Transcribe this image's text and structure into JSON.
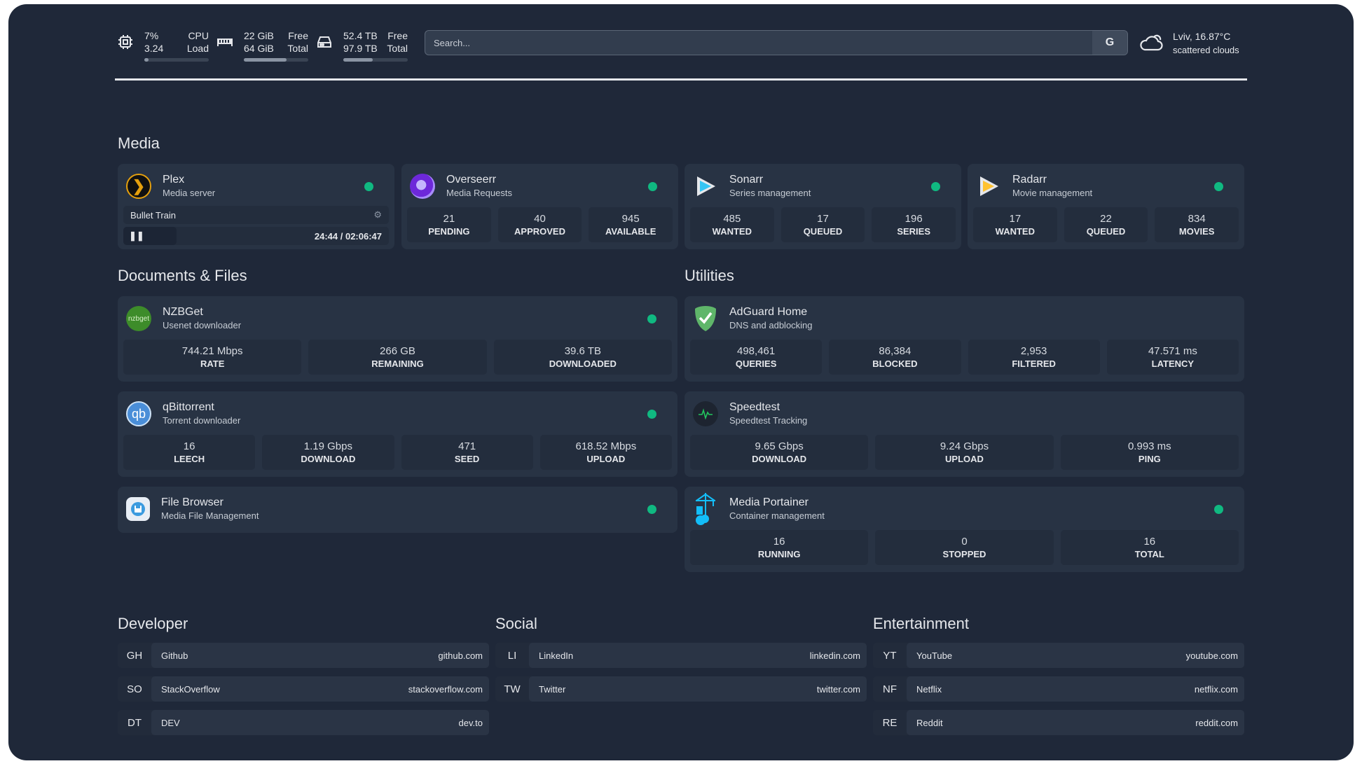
{
  "resources": {
    "cpu": {
      "icon": "cpu-icon",
      "value1": "7%",
      "label1": "CPU",
      "value2": "3.24",
      "label2": "Load",
      "percent": 7
    },
    "memory": {
      "icon": "memory-icon",
      "value1": "22 GiB",
      "label1": "Free",
      "value2": "64 GiB",
      "label2": "Total",
      "percent": 66
    },
    "disk": {
      "icon": "disk-icon",
      "value1": "52.4 TB",
      "label1": "Free",
      "value2": "97.9 TB",
      "label2": "Total",
      "percent": 46
    }
  },
  "search": {
    "placeholder": "Search...",
    "provider": "G"
  },
  "weather": {
    "icon": "cloud-icon",
    "location": "Lviv, 16.87°C",
    "condition": "scattered clouds"
  },
  "sections": {
    "media": "Media",
    "documents": "Documents & Files",
    "utilities": "Utilities",
    "developer": "Developer",
    "social": "Social",
    "entertainment": "Entertainment"
  },
  "media": [
    {
      "name": "Plex",
      "desc": "Media server",
      "status": "online",
      "now_playing": {
        "title": "Bullet Train",
        "time": "24:44 / 02:06:47",
        "state": "paused"
      }
    },
    {
      "name": "Overseerr",
      "desc": "Media Requests",
      "status": "online",
      "stats": [
        {
          "v": "21",
          "l": "PENDING"
        },
        {
          "v": "40",
          "l": "APPROVED"
        },
        {
          "v": "945",
          "l": "AVAILABLE"
        }
      ]
    },
    {
      "name": "Sonarr",
      "desc": "Series management",
      "status": "online",
      "stats": [
        {
          "v": "485",
          "l": "WANTED"
        },
        {
          "v": "17",
          "l": "QUEUED"
        },
        {
          "v": "196",
          "l": "SERIES"
        }
      ]
    },
    {
      "name": "Radarr",
      "desc": "Movie management",
      "status": "online",
      "stats": [
        {
          "v": "17",
          "l": "WANTED"
        },
        {
          "v": "22",
          "l": "QUEUED"
        },
        {
          "v": "834",
          "l": "MOVIES"
        }
      ]
    }
  ],
  "documents": [
    {
      "name": "NZBGet",
      "logo_text": "nzbget",
      "desc": "Usenet downloader",
      "status": "online",
      "stats": [
        {
          "v": "744.21 Mbps",
          "l": "RATE"
        },
        {
          "v": "266 GB",
          "l": "REMAINING"
        },
        {
          "v": "39.6 TB",
          "l": "DOWNLOADED"
        }
      ]
    },
    {
      "name": "qBittorrent",
      "logo_text": "qb",
      "desc": "Torrent downloader",
      "status": "online",
      "stats": [
        {
          "v": "16",
          "l": "LEECH"
        },
        {
          "v": "1.19 Gbps",
          "l": "DOWNLOAD"
        },
        {
          "v": "471",
          "l": "SEED"
        },
        {
          "v": "618.52 Mbps",
          "l": "UPLOAD"
        }
      ]
    },
    {
      "name": "File Browser",
      "desc": "Media File Management",
      "status": "online"
    }
  ],
  "utilities": [
    {
      "name": "AdGuard Home",
      "desc": "DNS and adblocking",
      "stats": [
        {
          "v": "498,461",
          "l": "QUERIES"
        },
        {
          "v": "86,384",
          "l": "BLOCKED"
        },
        {
          "v": "2,953",
          "l": "FILTERED"
        },
        {
          "v": "47.571 ms",
          "l": "LATENCY"
        }
      ]
    },
    {
      "name": "Speedtest",
      "desc": "Speedtest Tracking",
      "stats": [
        {
          "v": "9.65 Gbps",
          "l": "DOWNLOAD"
        },
        {
          "v": "9.24 Gbps",
          "l": "UPLOAD"
        },
        {
          "v": "0.993 ms",
          "l": "PING"
        }
      ]
    },
    {
      "name": "Media Portainer",
      "desc": "Container management",
      "status": "online",
      "stats": [
        {
          "v": "16",
          "l": "RUNNING"
        },
        {
          "v": "0",
          "l": "STOPPED"
        },
        {
          "v": "16",
          "l": "TOTAL"
        }
      ]
    }
  ],
  "bookmarks": {
    "developer": [
      {
        "abbr": "GH",
        "name": "Github",
        "url": "github.com"
      },
      {
        "abbr": "SO",
        "name": "StackOverflow",
        "url": "stackoverflow.com"
      },
      {
        "abbr": "DT",
        "name": "DEV",
        "url": "dev.to"
      }
    ],
    "social": [
      {
        "abbr": "LI",
        "name": "LinkedIn",
        "url": "linkedin.com"
      },
      {
        "abbr": "TW",
        "name": "Twitter",
        "url": "twitter.com"
      }
    ],
    "entertainment": [
      {
        "abbr": "YT",
        "name": "YouTube",
        "url": "youtube.com"
      },
      {
        "abbr": "NF",
        "name": "Netflix",
        "url": "netflix.com"
      },
      {
        "abbr": "RE",
        "name": "Reddit",
        "url": "reddit.com"
      }
    ]
  },
  "colors": {
    "background": "#1f2839",
    "card": "#283344",
    "status_online": "#10b981"
  }
}
